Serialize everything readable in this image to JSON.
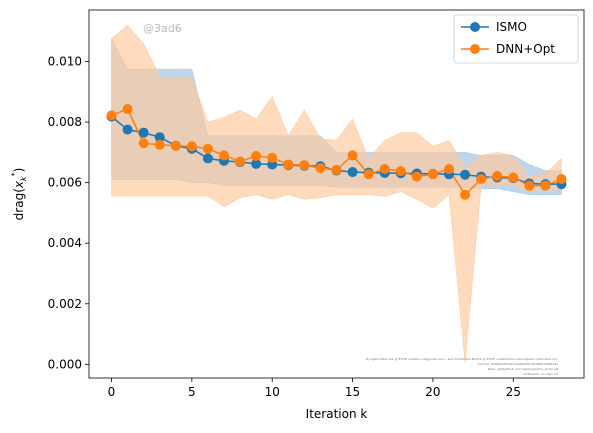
{
  "watermark": "@3ad6",
  "credits": [
    "By Kjetil Olsen Lye @ ETHZ <kjetil.o.lye@gmail.com> and Siddhartha Mishra @ ETHZ <siddhartha.mishra@sam.math.ethz.ch>",
    "Commit: 3ad6e01f23e1fce428e930cf0ef89149f89e4e",
    "Repo: git@github.com:kjetil-lye/ismo_airfoil.git",
    "Hostname: eu-login-23"
  ],
  "chart_data": {
    "type": "line",
    "title": "",
    "xlabel": "Iteration k",
    "ylabel": "drag(x_k^*)",
    "xlim": [
      -1.4,
      29.4
    ],
    "ylim": [
      -0.00045,
      0.0117
    ],
    "xticks": [
      0,
      5,
      10,
      15,
      20,
      25
    ],
    "yticks": [
      0.0,
      0.002,
      0.004,
      0.006,
      0.008,
      0.01
    ],
    "ytick_labels": [
      "0.000",
      "0.002",
      "0.004",
      "0.006",
      "0.008",
      "0.010"
    ],
    "grid": false,
    "legend_position": "upper right",
    "x": [
      0,
      1,
      2,
      3,
      4,
      5,
      6,
      7,
      8,
      9,
      10,
      11,
      12,
      13,
      14,
      15,
      16,
      17,
      18,
      19,
      20,
      21,
      22,
      23,
      24,
      25,
      26,
      27,
      28
    ],
    "series": [
      {
        "name": "ISMO",
        "color": "#1f77b4",
        "band_color": "#a9c8e3",
        "values": [
          0.00818,
          0.00775,
          0.00765,
          0.0075,
          0.00722,
          0.00712,
          0.0068,
          0.00672,
          0.00668,
          0.00662,
          0.0066,
          0.00658,
          0.00656,
          0.00654,
          0.0064,
          0.00635,
          0.00633,
          0.00632,
          0.00631,
          0.0063,
          0.00629,
          0.00628,
          0.00626,
          0.0062,
          0.00617,
          0.00615,
          0.00597,
          0.00595,
          0.00595
        ],
        "band_upper": [
          0.01075,
          0.00975,
          0.00975,
          0.00975,
          0.00975,
          0.00975,
          0.00755,
          0.00755,
          0.00755,
          0.00755,
          0.00755,
          0.00755,
          0.00755,
          0.00755,
          0.007,
          0.007,
          0.007,
          0.007,
          0.007,
          0.007,
          0.007,
          0.007,
          0.007,
          0.0069,
          0.0069,
          0.0069,
          0.0066,
          0.0064,
          0.0064
        ],
        "band_lower": [
          0.0061,
          0.0061,
          0.0061,
          0.0061,
          0.0061,
          0.006,
          0.006,
          0.0059,
          0.0059,
          0.0059,
          0.0059,
          0.0059,
          0.0059,
          0.0059,
          0.00585,
          0.00585,
          0.00585,
          0.00585,
          0.00585,
          0.00585,
          0.00585,
          0.00585,
          0.00585,
          0.0058,
          0.0058,
          0.0057,
          0.0056,
          0.0056,
          0.0056
        ]
      },
      {
        "name": "DNN+Opt",
        "color": "#ff7f0e",
        "band_color": "#ffc79a",
        "values": [
          0.00822,
          0.00843,
          0.0073,
          0.00725,
          0.00722,
          0.0072,
          0.00712,
          0.0069,
          0.0067,
          0.00688,
          0.00682,
          0.0066,
          0.00658,
          0.00648,
          0.00642,
          0.0069,
          0.00628,
          0.00645,
          0.00638,
          0.0062,
          0.00628,
          0.00645,
          0.0056,
          0.00612,
          0.00622,
          0.00617,
          0.0059,
          0.0059,
          0.00612
        ],
        "band_upper": [
          0.01075,
          0.0112,
          0.0106,
          0.0095,
          0.00945,
          0.00945,
          0.008,
          0.00815,
          0.0084,
          0.0081,
          0.00885,
          0.00755,
          0.0084,
          0.00745,
          0.0074,
          0.0081,
          0.0068,
          0.0074,
          0.00765,
          0.00765,
          0.0072,
          0.0074,
          0.0065,
          0.0069,
          0.007,
          0.0069,
          0.0062,
          0.0063,
          0.0068
        ],
        "band_lower": [
          0.00555,
          0.00555,
          0.00555,
          0.00555,
          0.00555,
          0.00555,
          0.00555,
          0.0052,
          0.0055,
          0.0056,
          0.00545,
          0.0056,
          0.00545,
          0.0055,
          0.0056,
          0.0056,
          0.0056,
          0.00555,
          0.0057,
          0.00545,
          0.00515,
          0.0056,
          5e-05,
          0.0059,
          0.00595,
          0.0059,
          0.0057,
          0.0058,
          0.0058
        ]
      }
    ]
  }
}
